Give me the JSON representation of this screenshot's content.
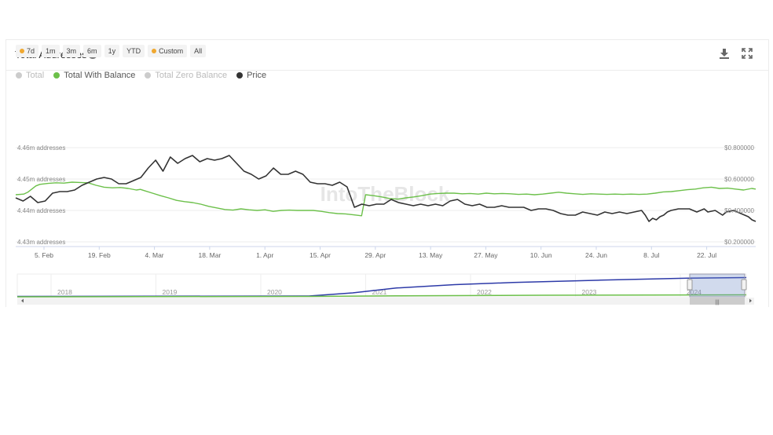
{
  "header": {
    "title": "Total Addresses",
    "help_icon": "question-circle-icon",
    "download_icon": "download-icon",
    "expand_icon": "expand-icon"
  },
  "range_buttons": [
    {
      "label": "7d",
      "dot": true
    },
    {
      "label": "1m",
      "dot": false
    },
    {
      "label": "3m",
      "dot": false
    },
    {
      "label": "6m",
      "dot": false
    },
    {
      "label": "1y",
      "dot": false
    },
    {
      "label": "YTD",
      "dot": false
    },
    {
      "label": "Custom",
      "dot": true
    },
    {
      "label": "All",
      "dot": false
    }
  ],
  "legend": [
    {
      "label": "Total",
      "color": "#cccccc",
      "active": false
    },
    {
      "label": "Total With Balance",
      "color": "#6cc04a",
      "active": true
    },
    {
      "label": "Total Zero Balance",
      "color": "#cccccc",
      "active": false
    },
    {
      "label": "Price",
      "color": "#333333",
      "active": true
    }
  ],
  "watermark": "IntoTheBlock",
  "chart_data": {
    "type": "line",
    "x_tick_labels": [
      "5. Feb",
      "19. Feb",
      "4. Mar",
      "18. Mar",
      "1. Apr",
      "15. Apr",
      "29. Apr",
      "13. May",
      "27. May",
      "10. Jun",
      "24. Jun",
      "8. Jul",
      "22. Jul"
    ],
    "x_range_days": [
      0,
      184
    ],
    "y_left": {
      "ticks": [
        "4.46m addresses",
        "4.45m addresses",
        "4.44m addresses",
        "4.43m addresses"
      ],
      "range": [
        4.43,
        4.46
      ],
      "unit": "m addresses"
    },
    "y_right": {
      "ticks": [
        "$0.800000",
        "$0.600000",
        "$0.400000",
        "$0.200000"
      ],
      "range": [
        0.2,
        0.8
      ]
    },
    "series": [
      {
        "name": "Total With Balance",
        "color": "#6cc04a",
        "axis": "left",
        "points": [
          [
            0,
            4.445
          ],
          [
            2,
            4.4452
          ],
          [
            3,
            4.4458
          ],
          [
            4,
            4.4468
          ],
          [
            5,
            4.4478
          ],
          [
            6,
            4.4483
          ],
          [
            8,
            4.4486
          ],
          [
            10,
            4.4488
          ],
          [
            12,
            4.4487
          ],
          [
            14,
            4.449
          ],
          [
            16,
            4.4489
          ],
          [
            18,
            4.4488
          ],
          [
            20,
            4.448
          ],
          [
            22,
            4.4474
          ],
          [
            24,
            4.4472
          ],
          [
            26,
            4.4473
          ],
          [
            28,
            4.447
          ],
          [
            30,
            4.4465
          ],
          [
            31,
            4.4467
          ],
          [
            32,
            4.4463
          ],
          [
            34,
            4.4455
          ],
          [
            36,
            4.4447
          ],
          [
            38,
            4.444
          ],
          [
            40,
            4.4432
          ],
          [
            42,
            4.4428
          ],
          [
            44,
            4.4425
          ],
          [
            46,
            4.442
          ],
          [
            48,
            4.4413
          ],
          [
            50,
            4.4408
          ],
          [
            52,
            4.4403
          ],
          [
            54,
            4.4401
          ],
          [
            56,
            4.4405
          ],
          [
            58,
            4.4402
          ],
          [
            60,
            4.44
          ],
          [
            62,
            4.4402
          ],
          [
            64,
            4.4397
          ],
          [
            66,
            4.44
          ],
          [
            68,
            4.4401
          ],
          [
            70,
            4.44
          ],
          [
            72,
            4.44
          ],
          [
            74,
            4.44
          ],
          [
            76,
            4.4397
          ],
          [
            78,
            4.4393
          ],
          [
            80,
            4.439
          ],
          [
            82,
            4.4389
          ],
          [
            84,
            4.4386
          ],
          [
            86,
            4.4383
          ],
          [
            87,
            4.445
          ],
          [
            89,
            4.4447
          ],
          [
            91,
            4.4443
          ],
          [
            93,
            4.4438
          ],
          [
            95,
            4.4436
          ],
          [
            97,
            4.444
          ],
          [
            99,
            4.4443
          ],
          [
            101,
            4.4447
          ],
          [
            103,
            4.4452
          ],
          [
            105,
            4.4454
          ],
          [
            107,
            4.4455
          ],
          [
            109,
            4.4455
          ],
          [
            111,
            4.4453
          ],
          [
            113,
            4.4454
          ],
          [
            115,
            4.4452
          ],
          [
            117,
            4.4455
          ],
          [
            119,
            4.4453
          ],
          [
            121,
            4.4454
          ],
          [
            123,
            4.4453
          ],
          [
            125,
            4.4451
          ],
          [
            127,
            4.4452
          ],
          [
            129,
            4.445
          ],
          [
            131,
            4.4452
          ],
          [
            133,
            4.4455
          ],
          [
            135,
            4.4458
          ],
          [
            137,
            4.4455
          ],
          [
            139,
            4.4453
          ],
          [
            141,
            4.4451
          ],
          [
            143,
            4.4453
          ],
          [
            145,
            4.4452
          ],
          [
            147,
            4.4451
          ],
          [
            149,
            4.4452
          ],
          [
            151,
            4.4451
          ],
          [
            153,
            4.4452
          ],
          [
            155,
            4.4451
          ],
          [
            157,
            4.4452
          ],
          [
            159,
            4.4455
          ],
          [
            161,
            4.4459
          ],
          [
            163,
            4.446
          ],
          [
            165,
            4.4463
          ],
          [
            167,
            4.4466
          ],
          [
            169,
            4.4468
          ],
          [
            171,
            4.4472
          ],
          [
            173,
            4.4474
          ],
          [
            175,
            4.447
          ],
          [
            177,
            4.4471
          ],
          [
            179,
            4.4468
          ],
          [
            181,
            4.4465
          ],
          [
            183,
            4.447
          ],
          [
            184,
            4.4468
          ]
        ]
      },
      {
        "name": "Price",
        "color": "#333333",
        "axis": "right",
        "points": [
          [
            0,
            0.48
          ],
          [
            2,
            0.46
          ],
          [
            4,
            0.49
          ],
          [
            6,
            0.45
          ],
          [
            8,
            0.46
          ],
          [
            10,
            0.51
          ],
          [
            12,
            0.52
          ],
          [
            14,
            0.52
          ],
          [
            16,
            0.53
          ],
          [
            18,
            0.56
          ],
          [
            20,
            0.58
          ],
          [
            22,
            0.6
          ],
          [
            24,
            0.61
          ],
          [
            26,
            0.6
          ],
          [
            28,
            0.57
          ],
          [
            30,
            0.57
          ],
          [
            32,
            0.59
          ],
          [
            34,
            0.61
          ],
          [
            36,
            0.67
          ],
          [
            38,
            0.72
          ],
          [
            40,
            0.65
          ],
          [
            42,
            0.74
          ],
          [
            44,
            0.7
          ],
          [
            46,
            0.73
          ],
          [
            48,
            0.75
          ],
          [
            50,
            0.71
          ],
          [
            52,
            0.73
          ],
          [
            54,
            0.72
          ],
          [
            56,
            0.73
          ],
          [
            58,
            0.75
          ],
          [
            60,
            0.7
          ],
          [
            62,
            0.65
          ],
          [
            64,
            0.63
          ],
          [
            66,
            0.6
          ],
          [
            68,
            0.62
          ],
          [
            70,
            0.67
          ],
          [
            72,
            0.63
          ],
          [
            74,
            0.63
          ],
          [
            76,
            0.65
          ],
          [
            78,
            0.63
          ],
          [
            80,
            0.58
          ],
          [
            82,
            0.57
          ],
          [
            84,
            0.57
          ],
          [
            86,
            0.56
          ],
          [
            88,
            0.58
          ],
          [
            90,
            0.55
          ],
          [
            92,
            0.42
          ],
          [
            94,
            0.44
          ],
          [
            96,
            0.43
          ],
          [
            98,
            0.44
          ],
          [
            100,
            0.44
          ],
          [
            102,
            0.47
          ],
          [
            104,
            0.45
          ],
          [
            106,
            0.44
          ],
          [
            108,
            0.43
          ],
          [
            110,
            0.44
          ],
          [
            112,
            0.43
          ],
          [
            114,
            0.44
          ],
          [
            116,
            0.43
          ],
          [
            118,
            0.46
          ],
          [
            120,
            0.47
          ],
          [
            122,
            0.44
          ],
          [
            124,
            0.43
          ],
          [
            126,
            0.44
          ],
          [
            128,
            0.42
          ],
          [
            130,
            0.42
          ],
          [
            132,
            0.43
          ],
          [
            134,
            0.42
          ],
          [
            136,
            0.42
          ],
          [
            138,
            0.42
          ],
          [
            140,
            0.4
          ],
          [
            142,
            0.41
          ],
          [
            144,
            0.41
          ],
          [
            146,
            0.4
          ],
          [
            148,
            0.38
          ],
          [
            150,
            0.37
          ],
          [
            152,
            0.37
          ],
          [
            154,
            0.39
          ],
          [
            156,
            0.38
          ],
          [
            158,
            0.37
          ],
          [
            160,
            0.39
          ],
          [
            162,
            0.38
          ],
          [
            164,
            0.39
          ],
          [
            166,
            0.38
          ],
          [
            168,
            0.39
          ],
          [
            170,
            0.4
          ],
          [
            171,
            0.37
          ],
          [
            172,
            0.33
          ],
          [
            173,
            0.35
          ],
          [
            174,
            0.34
          ],
          [
            175,
            0.36
          ],
          [
            176,
            0.37
          ],
          [
            177,
            0.39
          ],
          [
            178,
            0.4
          ],
          [
            180,
            0.41
          ],
          [
            182,
            0.41
          ],
          [
            183,
            0.41
          ],
          [
            184,
            0.4
          ],
          [
            185,
            0.39
          ],
          [
            186,
            0.4
          ],
          [
            187,
            0.41
          ],
          [
            188,
            0.39
          ],
          [
            190,
            0.4
          ],
          [
            192,
            0.37
          ],
          [
            193,
            0.39
          ],
          [
            195,
            0.4
          ],
          [
            197,
            0.38
          ],
          [
            199,
            0.36
          ],
          [
            200,
            0.34
          ],
          [
            201,
            0.33
          ]
        ]
      }
    ],
    "x_domain": [
      0,
      201
    ],
    "navigator": {
      "year_labels": [
        "2018",
        "2019",
        "2020",
        "2021",
        "2022",
        "2023",
        "2024"
      ],
      "series": [
        {
          "name": "Price",
          "color": "#2d3aa8",
          "points": [
            [
              0,
              0.02
            ],
            [
              1000,
              0.04
            ],
            [
              1150,
              0.2
            ],
            [
              1300,
              0.45
            ],
            [
              1500,
              0.62
            ],
            [
              1700,
              0.73
            ],
            [
              2000,
              0.85
            ],
            [
              2300,
              0.95
            ],
            [
              2500,
              0.98
            ]
          ]
        },
        {
          "name": "Total With Balance",
          "color": "#6cc04a",
          "points": [
            [
              0,
              0.0
            ],
            [
              1000,
              0.02
            ],
            [
              1300,
              0.05
            ],
            [
              1800,
              0.08
            ],
            [
              2500,
              0.1
            ]
          ]
        }
      ],
      "x_domain": [
        0,
        2500
      ]
    }
  }
}
